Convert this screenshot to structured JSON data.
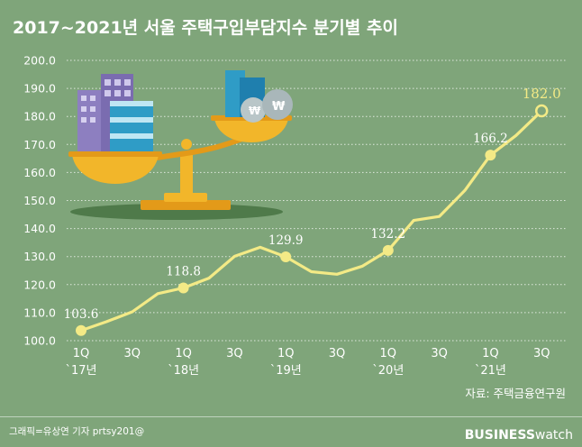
{
  "title": "2017~2021년 서울 주택구입부담지수 분기별 추이",
  "source": "자료: 주택금융연구원",
  "credit": "그래픽=유상연 기자 prtsy201@",
  "brand": {
    "bold": "BUSINESS",
    "light": "watch"
  },
  "colors": {
    "background": "#7fa57a",
    "line": "#f3ea86",
    "grid": "#ffffff"
  },
  "chart_data": {
    "type": "line",
    "title": "2017~2021년 서울 주택구입부담지수 분기별 추이",
    "ylim": [
      100,
      200
    ],
    "yticks": [
      "100.0",
      "110.0",
      "120.0",
      "130.0",
      "140.0",
      "150.0",
      "160.0",
      "170.0",
      "180.0",
      "190.0",
      "200.0"
    ],
    "x": [
      "1Q 17",
      "2Q 17",
      "3Q 17",
      "4Q 17",
      "1Q 18",
      "2Q 18",
      "3Q 18",
      "4Q 18",
      "1Q 19",
      "2Q 19",
      "3Q 19",
      "4Q 19",
      "1Q 20",
      "2Q 20",
      "3Q 20",
      "4Q 20",
      "1Q 21",
      "2Q 21",
      "3Q 21"
    ],
    "values": [
      103.6,
      106.8,
      110.3,
      116.8,
      118.8,
      122.3,
      130.1,
      133.3,
      129.9,
      124.6,
      123.7,
      126.6,
      132.2,
      142.9,
      144.3,
      153.6,
      166.2,
      173.2,
      182.0
    ],
    "xtick_labels": [
      {
        "index": 0,
        "quarter": "1Q",
        "year": "`17년"
      },
      {
        "index": 2,
        "quarter": "3Q",
        "year": ""
      },
      {
        "index": 4,
        "quarter": "1Q",
        "year": "`18년"
      },
      {
        "index": 6,
        "quarter": "3Q",
        "year": ""
      },
      {
        "index": 8,
        "quarter": "1Q",
        "year": "`19년"
      },
      {
        "index": 10,
        "quarter": "3Q",
        "year": ""
      },
      {
        "index": 12,
        "quarter": "1Q",
        "year": "`20년"
      },
      {
        "index": 14,
        "quarter": "3Q",
        "year": ""
      },
      {
        "index": 16,
        "quarter": "1Q",
        "year": "`21년"
      },
      {
        "index": 18,
        "quarter": "3Q",
        "year": ""
      }
    ],
    "data_labels": [
      {
        "index": 0,
        "text": "103.6"
      },
      {
        "index": 4,
        "text": "118.8"
      },
      {
        "index": 8,
        "text": "129.9"
      },
      {
        "index": 12,
        "text": "132.2"
      },
      {
        "index": 16,
        "text": "166.2"
      },
      {
        "index": 18,
        "text": "182.0"
      }
    ],
    "grid": true,
    "grid_axis": "y"
  }
}
